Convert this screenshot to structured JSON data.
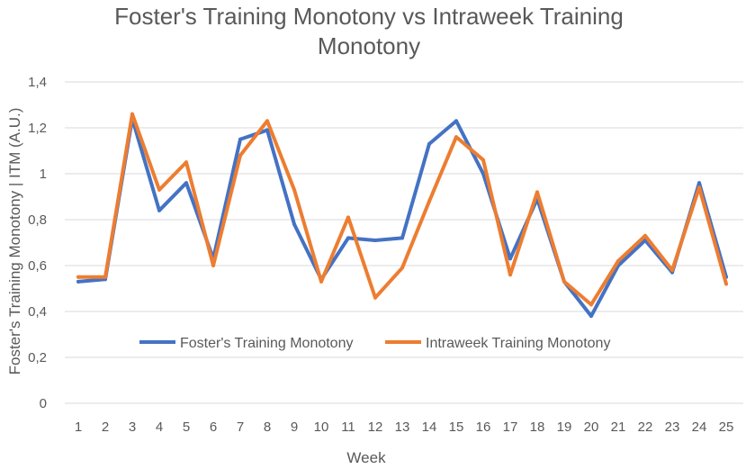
{
  "chart_data": {
    "type": "line",
    "title_lines": [
      "Foster's Training Monotony vs Intraweek Training",
      "Monotony"
    ],
    "xlabel": "Week",
    "ylabel": "Foster's Training Monotony | ITM (A.U.)",
    "categories": [
      "1",
      "2",
      "3",
      "4",
      "5",
      "6",
      "7",
      "8",
      "9",
      "10",
      "11",
      "12",
      "13",
      "14",
      "15",
      "16",
      "17",
      "18",
      "19",
      "20",
      "21",
      "22",
      "23",
      "24",
      "25"
    ],
    "ylim": [
      0,
      1.4
    ],
    "yticks": [
      0,
      0.2,
      0.4,
      0.6,
      0.8,
      1,
      1.2,
      1.4
    ],
    "ytick_labels": [
      "0",
      "0,2",
      "0,4",
      "0,6",
      "0,8",
      "1",
      "1,2",
      "1,4"
    ],
    "grid": "horizontal",
    "legend_position": "inside-bottom-center",
    "series": [
      {
        "name": "Foster's Training Monotony",
        "color": "#4472c4",
        "values": [
          0.53,
          0.54,
          1.24,
          0.84,
          0.96,
          0.63,
          1.15,
          1.19,
          0.78,
          0.54,
          0.72,
          0.71,
          0.72,
          1.13,
          1.23,
          1.0,
          0.63,
          0.89,
          0.53,
          0.38,
          0.6,
          0.71,
          0.57,
          0.96,
          0.55
        ]
      },
      {
        "name": "Intraweek Training Monotony",
        "color": "#ed7d31",
        "values": [
          0.55,
          0.55,
          1.26,
          0.93,
          1.05,
          0.6,
          1.08,
          1.23,
          0.93,
          0.53,
          0.81,
          0.46,
          0.59,
          0.88,
          1.16,
          1.06,
          0.56,
          0.92,
          0.53,
          0.43,
          0.62,
          0.73,
          0.58,
          0.94,
          0.52
        ]
      }
    ]
  }
}
